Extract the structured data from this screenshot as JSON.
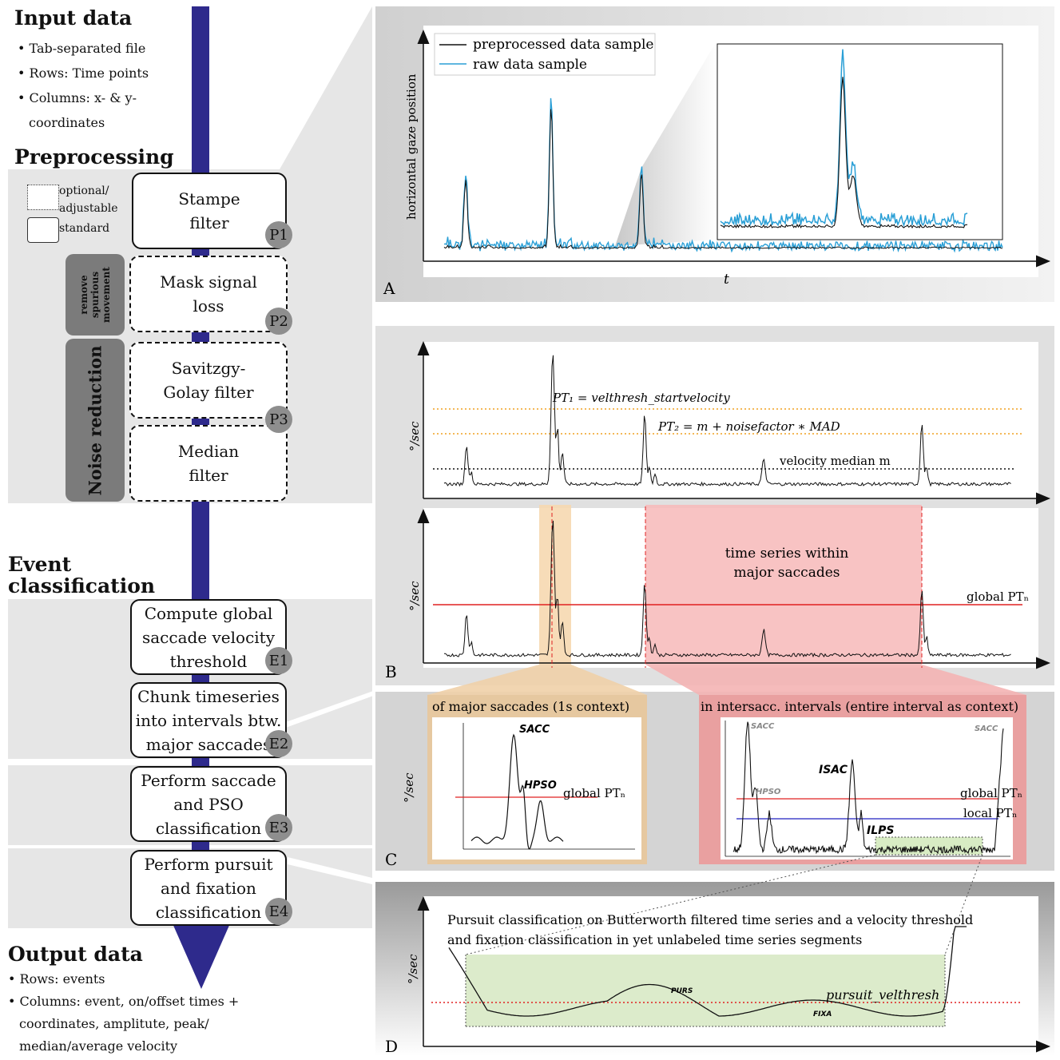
{
  "input": {
    "title": "Input data",
    "bullets": [
      "Tab-separated file",
      "Rows: Time points",
      "Columns: x- & y-",
      "coordinates"
    ]
  },
  "preprocessing": {
    "title": "Preprocessing",
    "legend_optional_1": "optional/",
    "legend_optional_2": "adjustable",
    "legend_standard": "standard",
    "side_remove_1": "remove",
    "side_remove_2": "spurious",
    "side_remove_3": "movement",
    "side_noise": "Noise reduction",
    "steps": [
      {
        "l1": "Stampe",
        "l2": "filter",
        "tag": "P1"
      },
      {
        "l1": "Mask signal",
        "l2": "loss",
        "tag": "P2"
      },
      {
        "l1": "Savitzgy-",
        "l2": "Golay filter",
        "tag": "P3"
      },
      {
        "l1": "Median",
        "l2": "filter",
        "tag": ""
      }
    ]
  },
  "events": {
    "title_1": "Event",
    "title_2": "classification",
    "steps": [
      {
        "l1": "Compute global",
        "l2": "saccade velocity",
        "l3": "threshold",
        "tag": "E1"
      },
      {
        "l1": "Chunk timeseries",
        "l2": "into intervals btw.",
        "l3": "major saccades",
        "tag": "E2"
      },
      {
        "l1": "Perform saccade",
        "l2": "and PSO",
        "l3": "classification",
        "tag": "E3"
      },
      {
        "l1": "Perform pursuit",
        "l2": "and fixation",
        "l3": "classification",
        "tag": "E4"
      }
    ]
  },
  "output": {
    "title": "Output data",
    "bullets": [
      "Rows: events",
      "Columns: event, on/offset times +",
      "coordinates, amplitute, peak/",
      "median/average velocity"
    ]
  },
  "panelA": {
    "letter": "A",
    "legend": [
      "preprocessed data sample",
      "raw data sample"
    ],
    "ylabel": "horizontal gaze position",
    "xlabel": "t"
  },
  "panelB": {
    "letter": "B",
    "ylabel": "°/sec",
    "pt1": "PT₁ = velthresh_startvelocity",
    "pt2": "PT₂ = m + noisefactor ∗ MAD",
    "median": "velocity median m",
    "major_1": "time series within",
    "major_2": "major saccades",
    "global": "global PTₙ"
  },
  "panelC": {
    "letter": "C",
    "ylabel": "°/sec",
    "left_title": "of major saccades (1s context)",
    "right_title": "in intersacc. intervals (entire interval as context)",
    "sacc": "SACC",
    "hpso": "HPSO",
    "isac": "ISAC",
    "ilps": "ILPS",
    "global": "global PTₙ",
    "local": "local PTₙ"
  },
  "panelD": {
    "letter": "D",
    "ylabel": "°/sec",
    "desc_1": "Pursuit classification on Butterworth filtered time series and a velocity threshold",
    "desc_2": "and fixation classification in yet unlabeled time series segments",
    "purs": "PURS",
    "fixa": "FIXA",
    "thresh": "pursuit_velthresh"
  },
  "colors": {
    "flow": "#2e2a8c",
    "raw": "#2a9fd6",
    "orange": "#f0a020",
    "red": "#e02020",
    "blue": "#2020c0",
    "green": "#d8ecc4"
  }
}
